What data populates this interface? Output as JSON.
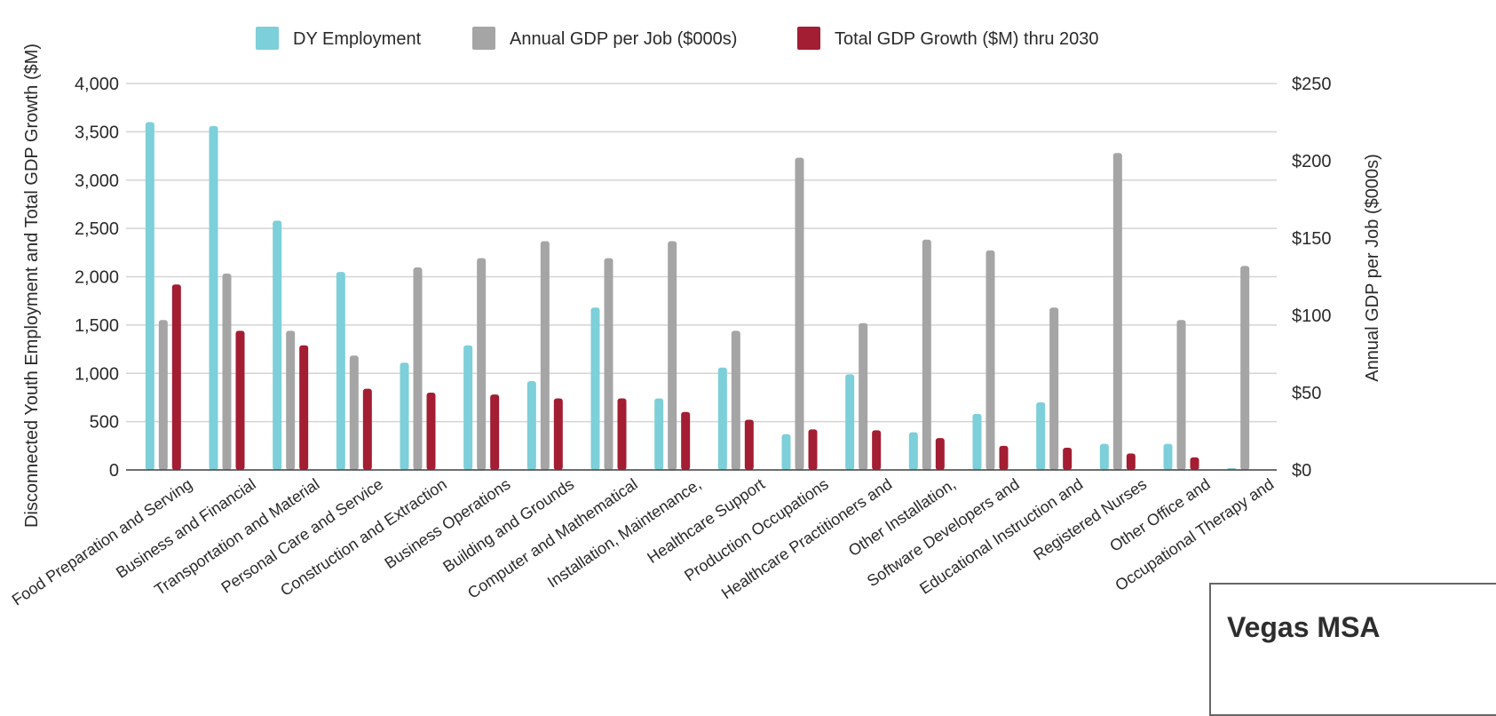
{
  "chart_data": {
    "type": "bar",
    "categories": [
      "Food Preparation and Serving",
      "Business and Financial",
      "Transportation and Material",
      "Personal Care and Service",
      "Construction and Extraction",
      "Business Operations",
      "Building and Grounds",
      "Computer and Mathematical",
      "Installation, Maintenance,",
      "Healthcare Support",
      "Production Occupations",
      "Healthcare Practitioners and",
      "Other Installation,",
      "Software Developers and",
      "Educational Instruction and",
      "Registered Nurses",
      "Other Office and",
      "Occupational Therapy and"
    ],
    "series": [
      {
        "name": "DY Employment",
        "axis": "left",
        "color": "#7dcfd9",
        "values": [
          3600,
          3560,
          2580,
          2050,
          1110,
          1290,
          920,
          1680,
          740,
          1060,
          370,
          990,
          390,
          580,
          700,
          270,
          270,
          20
        ]
      },
      {
        "name": "Annual GDP per Job ($000s)",
        "axis": "right",
        "color": "#a5a5a5",
        "values": [
          97,
          127,
          90,
          74,
          131,
          137,
          148,
          137,
          148,
          90,
          202,
          95,
          149,
          142,
          105,
          205,
          97,
          132
        ]
      },
      {
        "name": "Total GDP Growth ($M) thru 2030",
        "axis": "left",
        "color": "#a31d33",
        "values": [
          1920,
          1440,
          1290,
          840,
          800,
          780,
          740,
          740,
          600,
          520,
          420,
          410,
          330,
          250,
          230,
          170,
          130,
          0
        ]
      }
    ],
    "ylabel": "Disconnected Youth Employment and Total GDP Growth ($M)",
    "y2label": "Annual GDP per Job ($000s)",
    "ylim": [
      0,
      4000
    ],
    "y2lim": [
      0,
      250
    ],
    "yticks": [
      "0",
      "500",
      "1,000",
      "1,500",
      "2,000",
      "2,500",
      "3,000",
      "3,500",
      "4,000"
    ],
    "y2ticks": [
      "$0",
      "$50",
      "$100",
      "$150",
      "$200",
      "$250"
    ],
    "grid": true,
    "legend": "top"
  },
  "inset_label": "Vegas MSA"
}
